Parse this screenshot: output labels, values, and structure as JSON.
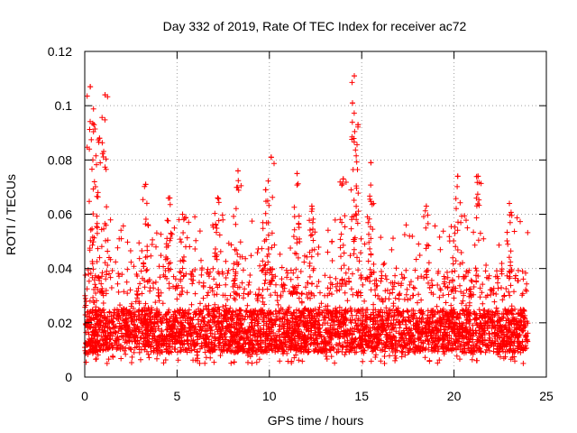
{
  "chart_data": {
    "type": "scatter",
    "title": "Day 332 of 2019, Rate Of TEC Index for receiver ac72",
    "xlabel": "GPS time / hours",
    "ylabel": "ROTI / TECUs",
    "xlim": [
      0,
      25
    ],
    "ylim": [
      0,
      0.12
    ],
    "xticks": [
      0,
      5,
      10,
      15,
      20,
      25
    ],
    "yticks": [
      0,
      0.02,
      0.04,
      0.06,
      0.08,
      0.1,
      0.12
    ],
    "ytick_labels": [
      "0",
      "0.02",
      "0.04",
      "0.06",
      "0.08",
      "0.1",
      "0.12"
    ],
    "grid": true,
    "marker": "+",
    "series": [
      {
        "name": "ROTI",
        "color": "#ff0000",
        "x_range": [
          0,
          24
        ],
        "bulk_range": [
          0.005,
          0.04
        ],
        "peaks": [
          {
            "x": 0.3,
            "y": 0.107
          },
          {
            "x": 0.5,
            "y": 0.093
          },
          {
            "x": 0.8,
            "y": 0.088
          },
          {
            "x": 1.1,
            "y": 0.104
          },
          {
            "x": 3.3,
            "y": 0.071
          },
          {
            "x": 4.6,
            "y": 0.066
          },
          {
            "x": 5.3,
            "y": 0.06
          },
          {
            "x": 7.2,
            "y": 0.066
          },
          {
            "x": 8.3,
            "y": 0.076
          },
          {
            "x": 9.8,
            "y": 0.069
          },
          {
            "x": 10.1,
            "y": 0.081
          },
          {
            "x": 11.5,
            "y": 0.075
          },
          {
            "x": 12.3,
            "y": 0.063
          },
          {
            "x": 14.0,
            "y": 0.073
          },
          {
            "x": 14.5,
            "y": 0.101
          },
          {
            "x": 14.6,
            "y": 0.111
          },
          {
            "x": 14.8,
            "y": 0.093
          },
          {
            "x": 15.5,
            "y": 0.079
          },
          {
            "x": 18.5,
            "y": 0.063
          },
          {
            "x": 20.2,
            "y": 0.074
          },
          {
            "x": 21.3,
            "y": 0.074
          },
          {
            "x": 23.0,
            "y": 0.064
          }
        ]
      }
    ]
  }
}
